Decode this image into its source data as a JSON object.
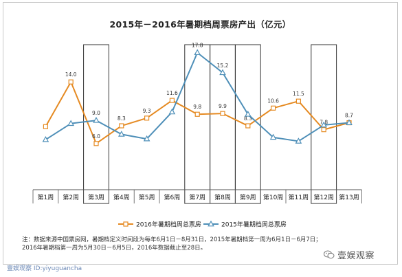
{
  "chart_data": {
    "type": "line",
    "title": "2015年－2016年暑期档周票房产出（亿元）",
    "categories": [
      "第1周",
      "第2周",
      "第3周",
      "第4周",
      "第5周",
      "第6周",
      "第7周",
      "第8周",
      "第9周",
      "第10周",
      "第11周",
      "第12周",
      "第13周"
    ],
    "series": [
      {
        "name": "2016年暑期档周总票房",
        "color": "#e58a22",
        "values": [
          8.2,
          14.0,
          6.0,
          8.3,
          9.3,
          11.6,
          9.8,
          9.9,
          8.3,
          10.6,
          11.5,
          7.8,
          8.7
        ],
        "labels": [
          "",
          "14.0",
          "6.0",
          "8.3",
          "9.3",
          "11.6",
          "9.8",
          "9.9",
          "8.3",
          "10.6",
          "11.5",
          "7.8",
          "8.7"
        ]
      },
      {
        "name": "2015年暑期档周总票房",
        "color": "#4e8fb8",
        "values": [
          6.5,
          8.6,
          9.0,
          7.2,
          6.6,
          10.1,
          17.8,
          15.2,
          9.8,
          6.8,
          6.3,
          8.4,
          8.7
        ],
        "labels": [
          "",
          "",
          "9.0",
          "",
          "",
          "",
          "17.8",
          "15.2",
          "",
          "",
          "",
          "",
          ""
        ]
      }
    ],
    "highlight_boxes": [
      "第3周",
      "第7周",
      "第8周",
      "第9周",
      "第12周"
    ],
    "ylim": [
      0,
      20
    ],
    "legend_position": "bottom",
    "grid": false
  },
  "notes": [
    "注：数据来源中国票房网，暑期档定义时间段为每年6月1日－8月31日，2015年暑期档第一周为6月1日－6月7日；",
    "2016年暑期档第一周为5月30日－6月5日，2016年数据截止至28日。"
  ],
  "footer": {
    "left": "壹娱观察   ID:yiyuguancha",
    "watermark": "壹娱观察"
  },
  "colors": {
    "axis": "#555555",
    "box": "#333333"
  }
}
